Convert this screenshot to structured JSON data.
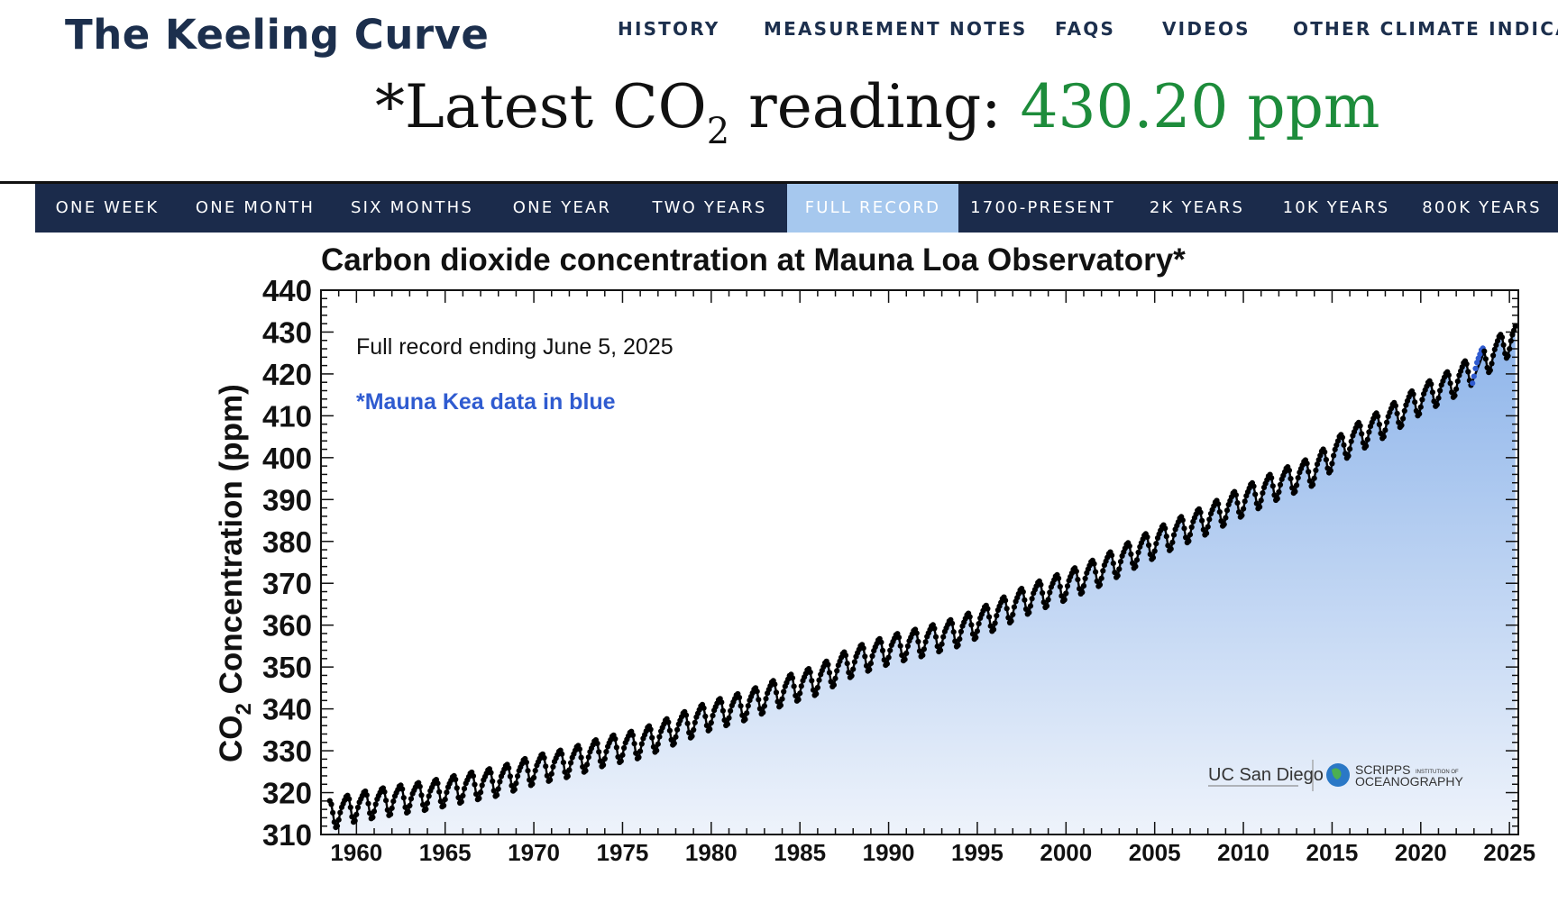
{
  "site": {
    "title": "The Keeling Curve"
  },
  "nav": {
    "items": [
      "HISTORY",
      "MEASUREMENT NOTES",
      "FAQS",
      "VIDEOS",
      "OTHER CLIMATE INDICAT"
    ]
  },
  "latest": {
    "prefix": "*Latest CO",
    "subscript": "2",
    "suffix": " reading: ",
    "value": "430.20 ppm",
    "value_color": "#1d8c3b"
  },
  "ranges": {
    "active": "FULL RECORD",
    "tabs": [
      "ONE WEEK",
      "ONE MONTH",
      "SIX MONTHS",
      "ONE YEAR",
      "TWO YEARS",
      "FULL RECORD",
      "1700-PRESENT",
      "2K YEARS",
      "10K YEARS",
      "800K YEARS"
    ]
  },
  "chart_data": {
    "type": "line",
    "title": "Carbon dioxide concentration at Mauna Loa Observatory*",
    "ylabel_main": "CO",
    "ylabel_sub": "2",
    "ylabel_rest": " Concentration (ppm)",
    "xlim": [
      1958,
      2025.5
    ],
    "ylim": [
      310,
      440
    ],
    "xticks": [
      1960,
      1965,
      1970,
      1975,
      1980,
      1985,
      1990,
      1995,
      2000,
      2005,
      2010,
      2015,
      2020,
      2025
    ],
    "yticks": [
      310,
      320,
      330,
      340,
      350,
      360,
      370,
      380,
      390,
      400,
      410,
      420,
      430,
      440
    ],
    "annotation_record": "Full record ending June 5, 2025",
    "annotation_kea": "*Mauna Kea data in blue",
    "colors": {
      "series": "#000000",
      "mauna_kea": "#2f5bd0",
      "fill_top": "#8db4ea",
      "fill_bottom": "#eef3fb"
    },
    "logos": [
      "UC San Diego",
      "SCRIPPS",
      "INSTITUTION OF",
      "OCEANOGRAPHY"
    ],
    "series": [
      {
        "x": [
          1958.5,
          1960,
          1962,
          1964,
          1966,
          1968,
          1970,
          1972,
          1974,
          1976,
          1978,
          1980,
          1982,
          1984,
          1986,
          1988,
          1990,
          1992,
          1994,
          1996,
          1998,
          2000,
          2002,
          2004,
          2006,
          2008,
          2010,
          2012,
          2014,
          2016,
          2018,
          2020,
          2022,
          2024,
          2025.4
        ],
        "values": [
          315,
          316.9,
          318.4,
          319.6,
          321.4,
          323.0,
          325.7,
          327.5,
          330.2,
          332.0,
          335.4,
          338.8,
          341.1,
          344.5,
          347.2,
          351.6,
          354.4,
          356.4,
          358.8,
          362.6,
          366.7,
          369.7,
          373.3,
          377.7,
          381.9,
          385.6,
          389.9,
          393.9,
          397.2,
          404.2,
          408.7,
          414.2,
          418.5,
          424.6,
          429.5
        ]
      }
    ]
  }
}
